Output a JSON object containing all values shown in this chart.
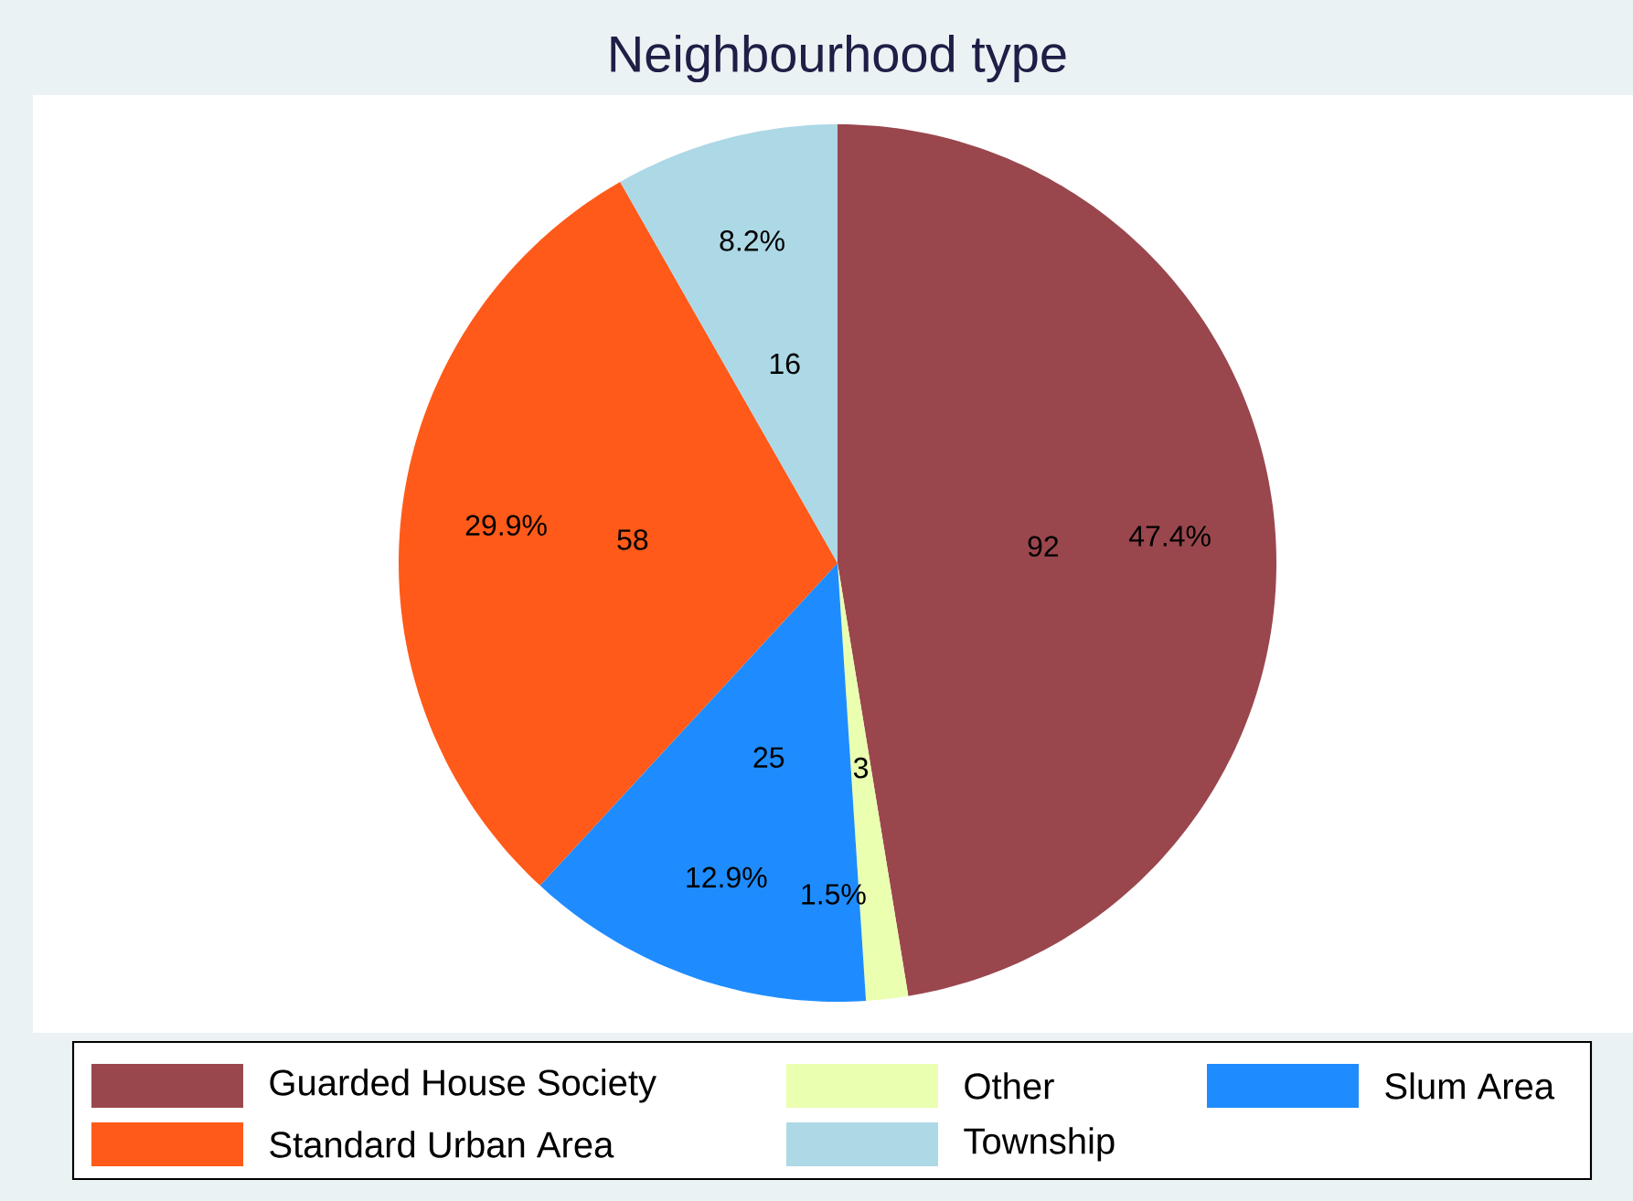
{
  "chart_data": {
    "type": "pie",
    "title": "Neighbourhood type",
    "categories": [
      "Guarded House Society",
      "Other",
      "Slum Area",
      "Standard Urban Area",
      "Township"
    ],
    "values": [
      92,
      3,
      25,
      58,
      16
    ],
    "colors": [
      "#9a464d",
      "#eaffb0",
      "#1e8cff",
      "#ff5a19",
      "#add8e6"
    ],
    "data_labels": true,
    "annotations": [
      "47.4%",
      "1.5%",
      "12.9%",
      "29.9%",
      "8.2%"
    ],
    "legend": "bottom"
  }
}
